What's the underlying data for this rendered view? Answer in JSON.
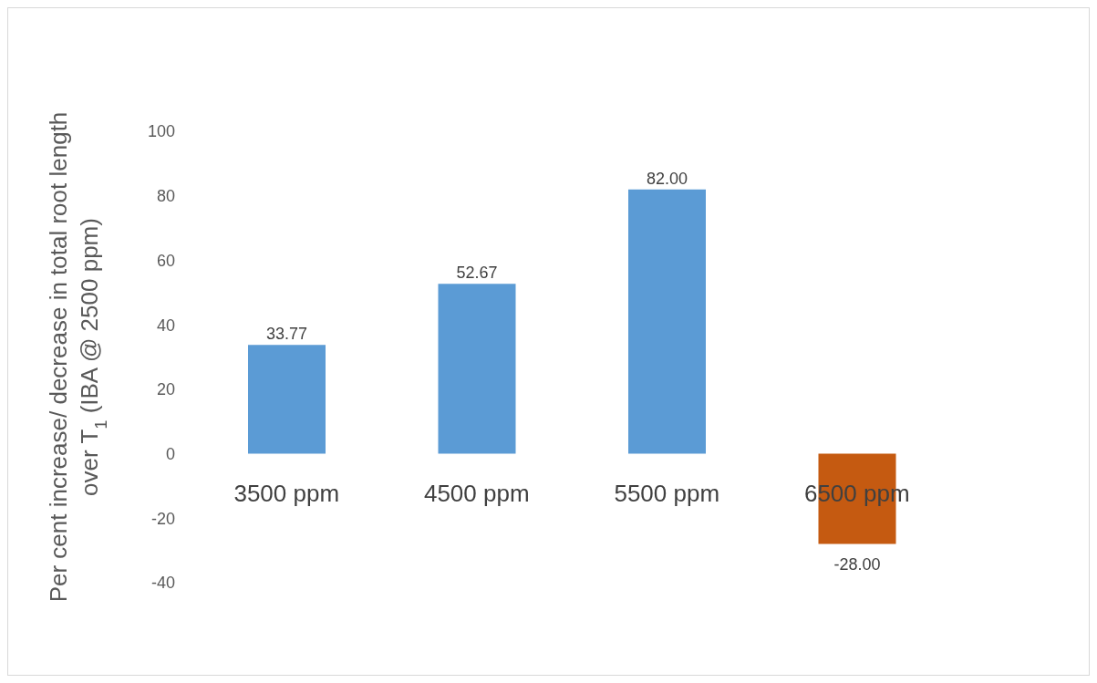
{
  "chart_data": {
    "type": "bar",
    "ylabel": "Per cent increase/ decrease in total root length over T$_{1}$ (IBA @ 2500 ppm)",
    "categories": [
      "3500 ppm",
      "4500 ppm",
      "5500 ppm",
      "6500 ppm"
    ],
    "values": [
      33.77,
      52.67,
      82.0,
      -28.0
    ],
    "colors": [
      "#5b9bd5",
      "#5b9bd5",
      "#5b9bd5",
      "#c55a11"
    ],
    "value_labels": [
      "33.77",
      "52.67",
      "82.00",
      "-28.00"
    ],
    "ylim": [
      -40,
      100
    ],
    "yticks": [
      -40,
      -20,
      0,
      20,
      40,
      60,
      80,
      100
    ],
    "grid": false,
    "legend": false
  }
}
